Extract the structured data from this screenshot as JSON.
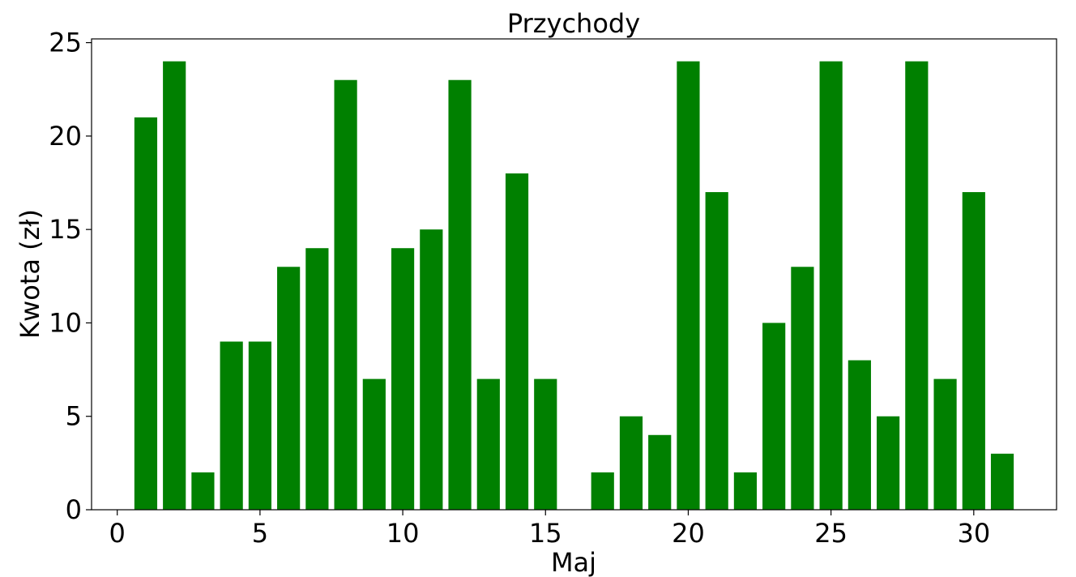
{
  "chart_data": {
    "type": "bar",
    "title": "Przychody",
    "xlabel": "Maj",
    "ylabel": "Kwota (zł)",
    "x": [
      1,
      2,
      3,
      4,
      5,
      6,
      7,
      8,
      9,
      10,
      11,
      12,
      13,
      14,
      15,
      16,
      17,
      18,
      19,
      20,
      21,
      22,
      23,
      24,
      25,
      26,
      27,
      28,
      29,
      30,
      31
    ],
    "values": [
      21,
      24,
      2,
      9,
      9,
      13,
      14,
      23,
      7,
      14,
      15,
      23,
      7,
      18,
      7,
      0,
      2,
      5,
      4,
      24,
      17,
      2,
      10,
      13,
      24,
      8,
      5,
      24,
      7,
      17,
      3
    ],
    "xlim": [
      -0.9,
      32.9
    ],
    "ylim": [
      0,
      25.2
    ],
    "xticks": [
      0,
      5,
      10,
      15,
      20,
      25,
      30
    ],
    "yticks": [
      0,
      5,
      10,
      15,
      20,
      25
    ],
    "grid": false,
    "bar_color": "#008000"
  }
}
